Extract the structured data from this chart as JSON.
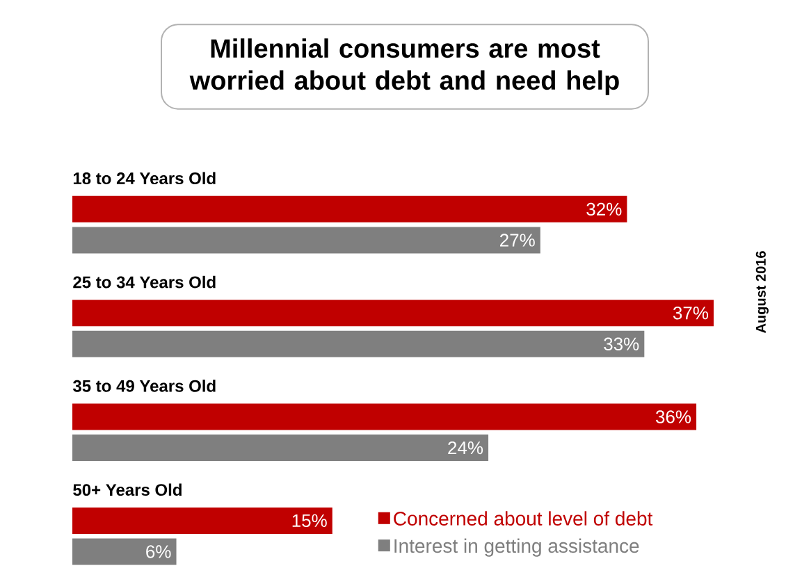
{
  "chart_data": {
    "type": "bar",
    "orientation": "horizontal",
    "title": "Millennial consumers are most worried about debt and need help",
    "categories": [
      "18 to 24 Years Old",
      "25 to 34 Years Old",
      "35 to 49 Years Old",
      "50+ Years Old"
    ],
    "series": [
      {
        "name": "Concerned about level of debt",
        "color": "#c00000",
        "values": [
          32,
          37,
          36,
          15
        ],
        "value_labels": [
          "32%",
          "37%",
          "36%",
          "15%"
        ]
      },
      {
        "name": "Interest in getting assistance",
        "color": "#7f7f7f",
        "values": [
          27,
          33,
          24,
          6
        ],
        "value_labels": [
          "27%",
          "33%",
          "24%",
          "6%"
        ]
      }
    ],
    "legend": "bottom right",
    "annotations": [
      "August 2016"
    ]
  }
}
